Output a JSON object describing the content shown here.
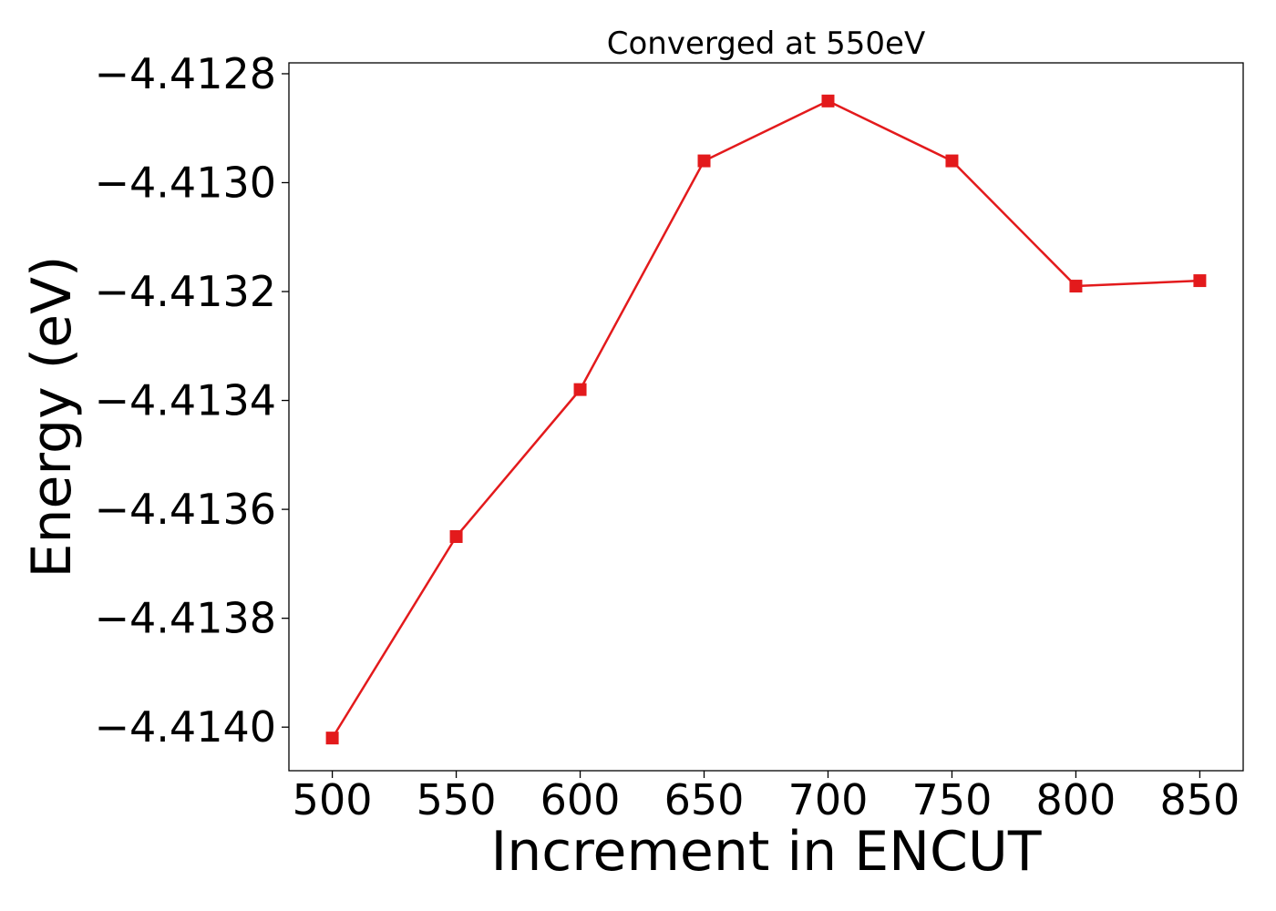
{
  "chart_data": {
    "type": "line",
    "title": "Converged at 550eV",
    "xlabel": "Increment in ENCUT",
    "ylabel": "Energy (eV)",
    "x": [
      500,
      550,
      600,
      650,
      700,
      750,
      800,
      850
    ],
    "series": [
      {
        "values": [
          -4.41402,
          -4.41365,
          -4.41338,
          -4.41296,
          -4.41285,
          -4.41296,
          -4.41319,
          -4.41318
        ],
        "color": "#e31a1c",
        "marker": "square"
      }
    ],
    "xlim": [
      482.5,
      867.5
    ],
    "ylim": [
      -4.41408,
      -4.41278
    ],
    "xticks": [
      500,
      550,
      600,
      650,
      700,
      750,
      800,
      850
    ],
    "xtick_labels": [
      "500",
      "550",
      "600",
      "650",
      "700",
      "750",
      "800",
      "850"
    ],
    "yticks": [
      -4.414,
      -4.4138,
      -4.4136,
      -4.4134,
      -4.4132,
      -4.413,
      -4.4128
    ],
    "ytick_labels": [
      "−4.4140",
      "−4.4138",
      "−4.4136",
      "−4.4134",
      "−4.4132",
      "−4.4130",
      "−4.4128"
    ],
    "grid": false,
    "legend": "none"
  }
}
